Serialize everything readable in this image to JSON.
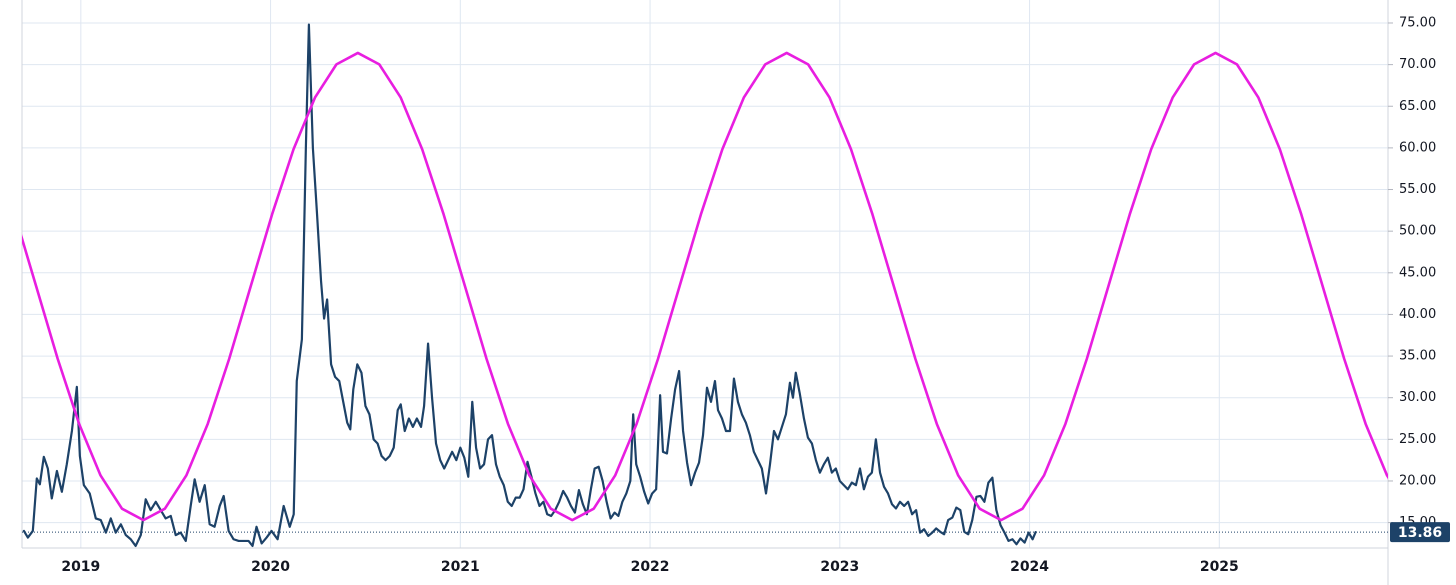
{
  "chart_data": {
    "type": "line",
    "xlim": [
      2018.69,
      2025.889
    ],
    "xticks": [
      2019,
      2020,
      2021,
      2022,
      2023,
      2024,
      2025
    ],
    "ylim": [
      11.95,
      77.76
    ],
    "yticks": [
      {
        "value": 15,
        "label": "15.00"
      },
      {
        "value": 20,
        "label": "20.00"
      },
      {
        "value": 25,
        "label": "25.00"
      },
      {
        "value": 30,
        "label": "30.00"
      },
      {
        "value": 35,
        "label": "35.00"
      },
      {
        "value": 40,
        "label": "40.00"
      },
      {
        "value": 45,
        "label": "45.00"
      },
      {
        "value": 50,
        "label": "50.00"
      },
      {
        "value": 55,
        "label": "55.00"
      },
      {
        "value": 60,
        "label": "60.00"
      },
      {
        "value": 65,
        "label": "65.00"
      },
      {
        "value": 70,
        "label": "70.00"
      },
      {
        "value": 75,
        "label": "75.00"
      }
    ],
    "grid": true,
    "last_value": 13.86,
    "series": [
      {
        "color": "#1d4268",
        "x": [
          2018.7,
          2018.721,
          2018.747,
          2018.768,
          2018.784,
          2018.805,
          2018.826,
          2018.847,
          2018.874,
          2018.9,
          2018.926,
          2018.953,
          2018.979,
          2018.995,
          2019.016,
          2019.047,
          2019.079,
          2019.105,
          2019.132,
          2019.158,
          2019.184,
          2019.211,
          2019.237,
          2019.263,
          2019.289,
          2019.316,
          2019.342,
          2019.368,
          2019.395,
          2019.421,
          2019.447,
          2019.474,
          2019.5,
          2019.526,
          2019.553,
          2019.579,
          2019.6,
          2019.626,
          2019.653,
          2019.679,
          2019.705,
          2019.732,
          2019.753,
          2019.779,
          2019.805,
          2019.832,
          2019.858,
          2019.884,
          2019.905,
          2019.926,
          2019.953,
          2019.979,
          2020.005,
          2020.037,
          2020.069,
          2020.101,
          2020.122,
          2020.138,
          2020.165,
          2020.186,
          2020.202,
          2020.223,
          2020.245,
          2020.266,
          2020.282,
          2020.298,
          2020.319,
          2020.34,
          2020.362,
          2020.383,
          2020.404,
          2020.42,
          2020.436,
          2020.457,
          2020.479,
          2020.5,
          2020.521,
          2020.543,
          2020.564,
          2020.585,
          2020.606,
          2020.628,
          2020.649,
          2020.67,
          2020.686,
          2020.707,
          2020.729,
          2020.75,
          2020.771,
          2020.793,
          2020.809,
          2020.83,
          2020.851,
          2020.872,
          2020.894,
          2020.915,
          2020.936,
          2020.957,
          2020.979,
          2021.0,
          2021.021,
          2021.042,
          2021.063,
          2021.083,
          2021.104,
          2021.125,
          2021.146,
          2021.167,
          2021.188,
          2021.208,
          2021.229,
          2021.25,
          2021.271,
          2021.292,
          2021.313,
          2021.333,
          2021.354,
          2021.375,
          2021.396,
          2021.417,
          2021.438,
          2021.458,
          2021.479,
          2021.5,
          2021.521,
          2021.542,
          2021.563,
          2021.583,
          2021.604,
          2021.625,
          2021.646,
          2021.667,
          2021.688,
          2021.708,
          2021.729,
          2021.75,
          2021.771,
          2021.792,
          2021.813,
          2021.833,
          2021.854,
          2021.875,
          2021.896,
          2021.911,
          2021.927,
          2021.948,
          2021.969,
          2021.99,
          2022.011,
          2022.032,
          2022.053,
          2022.068,
          2022.089,
          2022.111,
          2022.132,
          2022.153,
          2022.174,
          2022.195,
          2022.216,
          2022.237,
          2022.258,
          2022.279,
          2022.3,
          2022.321,
          2022.342,
          2022.358,
          2022.379,
          2022.4,
          2022.421,
          2022.442,
          2022.463,
          2022.484,
          2022.505,
          2022.526,
          2022.547,
          2022.568,
          2022.589,
          2022.611,
          2022.632,
          2022.653,
          2022.674,
          2022.695,
          2022.716,
          2022.737,
          2022.753,
          2022.768,
          2022.789,
          2022.811,
          2022.832,
          2022.853,
          2022.874,
          2022.895,
          2022.916,
          2022.937,
          2022.958,
          2022.979,
          2023.0,
          2023.021,
          2023.042,
          2023.063,
          2023.085,
          2023.106,
          2023.127,
          2023.148,
          2023.169,
          2023.19,
          2023.212,
          2023.233,
          2023.254,
          2023.275,
          2023.296,
          2023.317,
          2023.339,
          2023.36,
          2023.381,
          2023.402,
          2023.423,
          2023.444,
          2023.466,
          2023.487,
          2023.508,
          2023.529,
          2023.55,
          2023.571,
          2023.593,
          2023.614,
          2023.635,
          2023.656,
          2023.677,
          2023.698,
          2023.72,
          2023.741,
          2023.762,
          2023.783,
          2023.804,
          2023.825,
          2023.847,
          2023.868,
          2023.889,
          2023.91,
          2023.931,
          2023.952,
          2023.974,
          2023.995,
          2024.016,
          2024.032
        ],
        "values": [
          14.0,
          13.2,
          14.0,
          20.3,
          19.6,
          22.9,
          21.5,
          17.9,
          21.2,
          18.7,
          22,
          26,
          31.3,
          23,
          19.5,
          18.5,
          15.5,
          15.3,
          13.8,
          15.5,
          13.8,
          14.8,
          13.5,
          13.0,
          12.2,
          13.5,
          17.8,
          16.5,
          17.5,
          16.5,
          15.5,
          15.8,
          13.5,
          13.8,
          12.8,
          17,
          20.2,
          17.5,
          19.5,
          14.8,
          14.5,
          17,
          18.2,
          14,
          13,
          12.8,
          12.8,
          12.8,
          12.2,
          14.5,
          12.5,
          13.2,
          14.0,
          13,
          17,
          14.5,
          16,
          32,
          37,
          60,
          74.8,
          60,
          52,
          44,
          39.5,
          41.8,
          34,
          32.5,
          32,
          29.5,
          27,
          26.2,
          31,
          34,
          33,
          29,
          28,
          25,
          24.5,
          23,
          22.5,
          23,
          24,
          28.5,
          29.2,
          26,
          27.5,
          26.5,
          27.5,
          26.5,
          29,
          36.5,
          30,
          24.5,
          22.5,
          21.5,
          22.5,
          23.5,
          22.5,
          24,
          22.8,
          20.5,
          29.5,
          24,
          21.5,
          22,
          25,
          25.5,
          22,
          20.5,
          19.5,
          17.5,
          17,
          18,
          18,
          19,
          22.3,
          20.5,
          18.5,
          17,
          17.5,
          16,
          15.8,
          16.5,
          17.5,
          18.8,
          18,
          17,
          16.2,
          18.9,
          17.2,
          16,
          19,
          21.5,
          21.7,
          20,
          17.5,
          15.5,
          16.2,
          15.8,
          17.5,
          18.5,
          20,
          28,
          22,
          20.5,
          18.7,
          17.3,
          18.5,
          19,
          30.3,
          23.5,
          23.3,
          27.5,
          31,
          33.2,
          26,
          22.2,
          19.5,
          21,
          22.2,
          25.5,
          31.2,
          29.5,
          32,
          28.5,
          27.5,
          26,
          26,
          32.3,
          29.5,
          28,
          27,
          25.5,
          23.5,
          22.5,
          21.5,
          18.5,
          22,
          26,
          25,
          26.5,
          28,
          31.8,
          30,
          33,
          30.5,
          27.5,
          25.2,
          24.5,
          22.5,
          21,
          22,
          22.8,
          21,
          21.5,
          20,
          19.5,
          19,
          19.8,
          19.5,
          21.5,
          19,
          20.5,
          21,
          25,
          21,
          19.3,
          18.5,
          17.2,
          16.7,
          17.5,
          17,
          17.5,
          16,
          16.5,
          13.8,
          14.2,
          13.4,
          13.8,
          14.3,
          13.9,
          13.6,
          15.3,
          15.6,
          16.8,
          16.5,
          13.9,
          13.6,
          15.3,
          18.1,
          18.2,
          17.5,
          19.8,
          20.4,
          16.5,
          14.7,
          13.8,
          12.8,
          13.0,
          12.4,
          13.1,
          12.6,
          13.8,
          13.0,
          13.86
        ]
      },
      {
        "color": "#e81ee0",
        "x": [
          2018.652,
          2018.765,
          2018.878,
          2018.991,
          2019.104,
          2019.217,
          2019.33,
          2019.443,
          2019.556,
          2019.669,
          2019.782,
          2019.895,
          2020.008,
          2020.121,
          2020.234,
          2020.347,
          2020.46,
          2020.573,
          2020.686,
          2020.799,
          2020.912,
          2021.025,
          2021.138,
          2021.251,
          2021.364,
          2021.477,
          2021.59,
          2021.703,
          2021.816,
          2021.929,
          2022.042,
          2022.155,
          2022.268,
          2022.381,
          2022.494,
          2022.607,
          2022.72,
          2022.833,
          2022.946,
          2023.059,
          2023.172,
          2023.285,
          2023.398,
          2023.511,
          2023.624,
          2023.737,
          2023.85,
          2023.963,
          2024.076,
          2024.189,
          2024.302,
          2024.415,
          2024.528,
          2024.641,
          2024.754,
          2024.867,
          2024.98,
          2025.093,
          2025.206,
          2025.319,
          2025.432,
          2025.545,
          2025.658,
          2025.771,
          2025.884,
          2025.997
        ],
        "values": [
          52.02,
          43.35,
          34.68,
          26.86,
          20.66,
          16.67,
          15.3,
          16.67,
          20.66,
          26.86,
          34.68,
          43.35,
          52.02,
          59.84,
          66.04,
          70.03,
          71.4,
          70.03,
          66.04,
          59.84,
          52.02,
          43.35,
          34.68,
          26.86,
          20.66,
          16.67,
          15.3,
          16.67,
          20.66,
          26.86,
          34.68,
          43.35,
          52.02,
          59.84,
          66.04,
          70.03,
          71.4,
          70.03,
          66.04,
          59.84,
          52.02,
          43.35,
          34.68,
          26.86,
          20.66,
          16.67,
          15.3,
          16.67,
          20.66,
          26.86,
          34.68,
          43.35,
          52.02,
          59.84,
          66.04,
          70.03,
          71.4,
          70.03,
          66.04,
          59.84,
          52.02,
          43.35,
          34.68,
          26.86,
          20.66,
          16.67
        ]
      }
    ]
  }
}
